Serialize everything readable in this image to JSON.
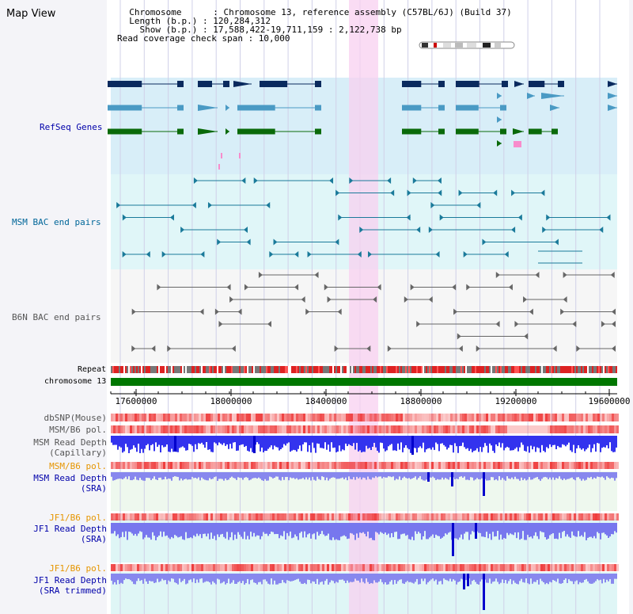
{
  "title": "Map View",
  "header": {
    "chromosome_line": "  Chromosome      : Chromosome 13, reference assembly (C57BL/6J) (Build 37)",
    "length_line": "  Length (b.p.) : 120,284,312",
    "show_line": "    Show (b.p.) : 17,588,422-19,711,159 : 2,122,738 bp",
    "span_line": "Read coverage check span : 10,000"
  },
  "tracks": {
    "refseq": {
      "label": "RefSeq Genes",
      "color": "#0000aa"
    },
    "msm_bac": {
      "label": "MSM BAC end pairs",
      "color": "#006699"
    },
    "b6n_bac": {
      "label": "B6N BAC end pairs",
      "color": "#555555"
    },
    "repeat": {
      "label": "Repeat"
    },
    "chromosome": {
      "label": "chromosome 13"
    },
    "dbsnp": {
      "label": "dbSNP(Mouse)"
    },
    "msm_b6_pol_1": {
      "label": "MSM/B6 pol."
    },
    "msm_depth_cap": {
      "label_1": "MSM Read Depth",
      "label_2": "(Capillary)"
    },
    "msm_b6_pol_2": {
      "label": "MSM/B6 pol."
    },
    "msm_depth_sra": {
      "label_1": "MSM Read Depth",
      "label_2": "(SRA)"
    },
    "jf1_b6_pol_1": {
      "label": "JF1/B6 pol."
    },
    "jf1_depth_sra": {
      "label_1": "JF1 Read Depth",
      "label_2": "(SRA)"
    },
    "jf1_b6_pol_2": {
      "label": "JF1/B6 pol."
    },
    "jf1_depth_trim": {
      "label_1": "JF1 Read Depth",
      "label_2": "(SRA trimmed)"
    }
  },
  "axis": {
    "ticks": [
      "17600000",
      "18000000",
      "18400000",
      "18800000",
      "19200000",
      "19600000"
    ]
  },
  "colors": {
    "refseq_dark": "#0a2a5e",
    "refseq_mid": "#4a9ac4",
    "refseq_green": "#0a6a0a",
    "highlight": "#f8d0f0",
    "pol": "#ee3333",
    "depth": "#2222dd",
    "chromosome_bar": "#007700"
  }
}
